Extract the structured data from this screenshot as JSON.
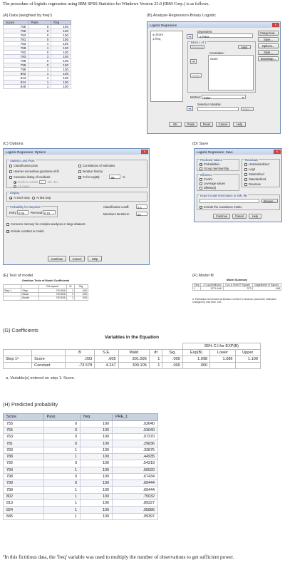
{
  "intro": "The procedure of logistic regression using IBM SPSS Statistics for Windows Version 23.0 (IBM Corp.) is as follows.",
  "captions": {
    "a": "(A) Data (weighted by freq¹)",
    "b": "(B) Analyze-Regression-Binary Logistic",
    "c": "(C) Options",
    "d": "(D) Save",
    "e": "(E) Test of model",
    "f": "(F) Model fit",
    "g": "(G) Coefficients",
    "h": "(H) Predicted probability"
  },
  "dataTable": {
    "headers": [
      "Score",
      "Pass",
      "freq"
    ],
    "rows": [
      [
        "755",
        "0",
        "100"
      ],
      [
        "755",
        "0",
        "100"
      ],
      [
        "763",
        "0",
        "100"
      ],
      [
        "781",
        "0",
        "100"
      ],
      [
        "783",
        "1",
        "100"
      ],
      [
        "788",
        "1",
        "100"
      ],
      [
        "792",
        "0",
        "100"
      ],
      [
        "793",
        "1",
        "100"
      ],
      [
        "798",
        "0",
        "100"
      ],
      [
        "799",
        "0",
        "100"
      ],
      [
        "799",
        "1",
        "100"
      ],
      [
        "802",
        "1",
        "100"
      ],
      [
        "813",
        "1",
        "100"
      ],
      [
        "824",
        "1",
        "100"
      ],
      [
        "845",
        "1",
        "100"
      ]
    ]
  },
  "dialogB": {
    "title": "Logistic Regression",
    "close": "X",
    "vars": [
      "Score",
      "freq"
    ],
    "dependent_label": "Dependent:",
    "dependent_value": "Pass",
    "block": "Block 1 of 1",
    "previous": "Previous",
    "next": "Next",
    "covariates_label": "Covariates:",
    "covariates": [
      "Score"
    ],
    "interaction": ">a*b>",
    "method_label": "Method:",
    "method_value": "Enter",
    "selection_label": "Selection Variable:",
    "rule": "Rule...",
    "side": [
      "Categorical...",
      "Save...",
      "Options...",
      "Style...",
      "Bootstrap..."
    ],
    "bottom": [
      "OK",
      "Paste",
      "Reset",
      "Cancel",
      "Help"
    ]
  },
  "dialogC": {
    "title": "Logistic Regression: Options",
    "stats_group": "Statistics and Plots",
    "left_checks": [
      {
        "label": "Classification plots",
        "on": false
      },
      {
        "label": "Hosmer-Lemeshow goodness-of-fit",
        "on": false
      },
      {
        "label": "Casewise listing of residuals",
        "on": false
      }
    ],
    "outliers": "Outliers outside",
    "outliers_value": "2",
    "std_dev": "std. dev.",
    "all_cases": "All cases",
    "right_checks": [
      {
        "label": "Correlations of estimates",
        "on": false
      },
      {
        "label": "Iteration history",
        "on": false
      },
      {
        "label": "CI for exp(B):",
        "on": true
      }
    ],
    "ci_value": "95",
    "pct": "%",
    "display_group": "Display",
    "display_opts": [
      "At each step",
      "At last step"
    ],
    "stepwise_group": "Probability for Stepwise",
    "entry_label": "Entry:",
    "entry_value": "0.05",
    "removal_label": "Removal:",
    "removal_value": "0.10",
    "cutoff_label": "Classification cutoff:",
    "cutoff_value": "0.5",
    "maxiter_label": "Maximum Iterations:",
    "maxiter_value": "20",
    "conserve": "Conserve memory for complex analyses or large datasets",
    "constant": "Include constant in model",
    "bottom": [
      "Continue",
      "Cancel",
      "Help"
    ]
  },
  "dialogD": {
    "title": "Logistic Regression: Save",
    "pred_group": "Predicted Values",
    "pred_opts": [
      {
        "label": "Probabilities",
        "on": true
      },
      {
        "label": "Group membership",
        "on": false
      }
    ],
    "infl_group": "Influence",
    "infl_opts": [
      {
        "label": "Cook's",
        "on": false
      },
      {
        "label": "Leverage values",
        "on": false
      },
      {
        "label": "DfBeta(s)",
        "on": false
      }
    ],
    "resid_group": "Residuals",
    "resid_opts": [
      {
        "label": "Unstandardized",
        "on": false
      },
      {
        "label": "Logit",
        "on": false
      },
      {
        "label": "Studentized",
        "on": false
      },
      {
        "label": "Standardized",
        "on": false
      },
      {
        "label": "Deviance",
        "on": false
      }
    ],
    "export_group": "Export model information to XML file",
    "browse": "Browse...",
    "cov": "Include the covariance matrix",
    "bottom": [
      "Continue",
      "Cancel",
      "Help"
    ]
  },
  "omnibus": {
    "title": "Omnibus Tests of Model Coefficients",
    "headers": [
      "",
      "",
      "Chi-square",
      "df",
      "Sig."
    ],
    "rows": [
      [
        "Step 1",
        "Step",
        "700.826",
        "1",
        ".000"
      ],
      [
        "",
        "Block",
        "700.826",
        "1",
        ".000"
      ],
      [
        "",
        "Model",
        "700.826",
        "1",
        ".000"
      ]
    ]
  },
  "modelSummary": {
    "title": "Model Summary",
    "headers": [
      "Step",
      "-2 Log likelihood",
      "Cox & Snell R Square",
      "Nagelkerke R Square"
    ],
    "row": [
      "1",
      "1371.944ᵃ",
      ".373",
      ".498"
    ],
    "note": "a. Estimation terminated at iteration number 6 because parameter estimates changed by less than .001."
  },
  "coef": {
    "title": "Variables in the Equation",
    "ci_header": "95% C.I.for EXP(B)",
    "headers": [
      "",
      "",
      "B",
      "S.E.",
      "Wald",
      "df",
      "Sig.",
      "Exp(B)",
      "Lower",
      "Upper"
    ],
    "rows": [
      [
        "Step 1ᵃ",
        "Score",
        ".093",
        ".005",
        "301.595",
        "1",
        ".000",
        "1.098",
        "1.086",
        "1.109"
      ],
      [
        "",
        "Constant",
        "-73.578",
        "4.247",
        "300.105",
        "1",
        ".000",
        ".000",
        "",
        ""
      ]
    ],
    "note": "a. Variable(s) entered on step 1: Score."
  },
  "predTable": {
    "headers": [
      "Score",
      "Pass",
      "freq",
      "PRE_1"
    ],
    "rows": [
      [
        "755",
        "0",
        "100",
        ".03640"
      ],
      [
        "755",
        "0",
        "100",
        ".03640"
      ],
      [
        "763",
        "0",
        "100",
        ".07370"
      ],
      [
        "781",
        "0",
        "100",
        ".29836"
      ],
      [
        "783",
        "1",
        "100",
        ".33875"
      ],
      [
        "788",
        "1",
        "100",
        ".44935"
      ],
      [
        "792",
        "0",
        "100",
        ".54219"
      ],
      [
        "793",
        "1",
        "100",
        ".56520"
      ],
      [
        "798",
        "0",
        "100",
        ".67434"
      ],
      [
        "799",
        "0",
        "100",
        ".69444"
      ],
      [
        "799",
        "1",
        "100",
        ".69444"
      ],
      [
        "802",
        "1",
        "100",
        ".75032"
      ],
      [
        "813",
        "1",
        "100",
        ".89327"
      ],
      [
        "824",
        "1",
        "100",
        ".95886"
      ],
      [
        "845",
        "1",
        "100",
        ".99397"
      ]
    ]
  },
  "footnote": "¹In this fictitious data, the 'freq' variable was used to multiply the number of observations to get sufficient power."
}
